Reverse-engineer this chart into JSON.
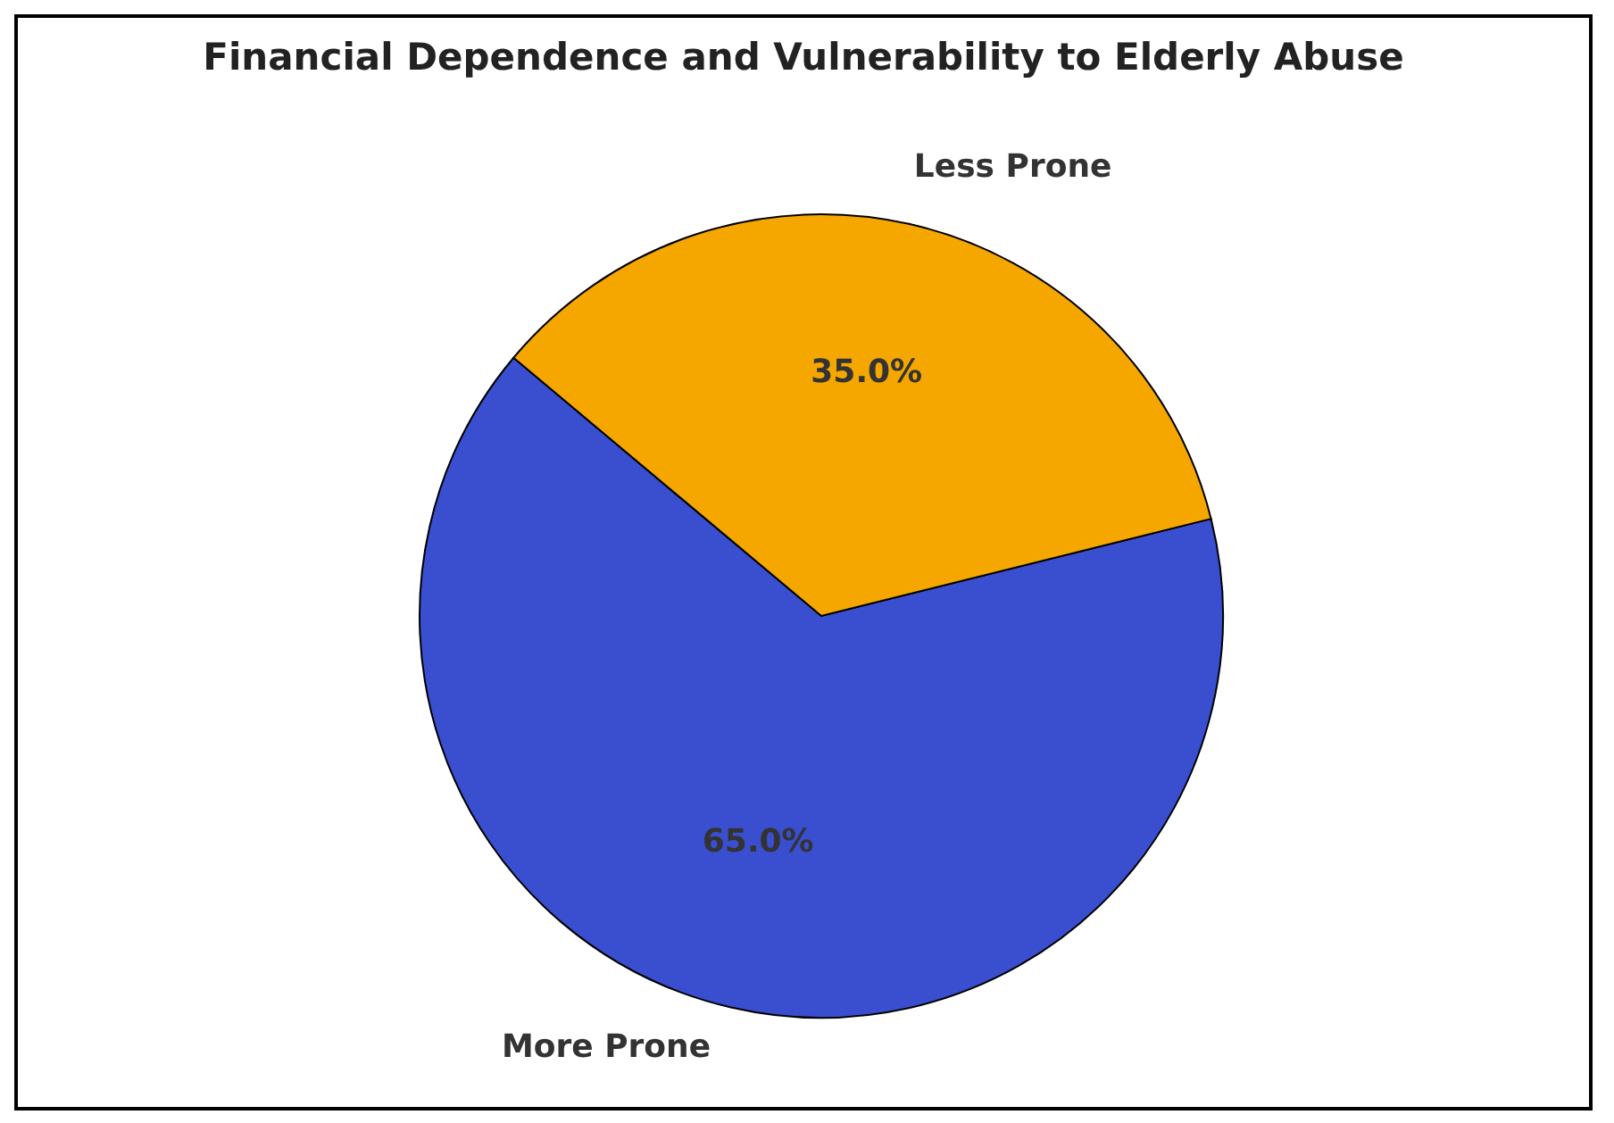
{
  "chart_data": {
    "type": "pie",
    "title": "Financial Dependence and Vulnerability to Elderly Abuse",
    "categories": [
      "More Prone",
      "Less Prone"
    ],
    "values": [
      65,
      35
    ],
    "colors": [
      "#3a4fcf",
      "#f5a700"
    ],
    "value_labels": [
      "65.0%",
      "35.0%"
    ],
    "legend": false
  }
}
